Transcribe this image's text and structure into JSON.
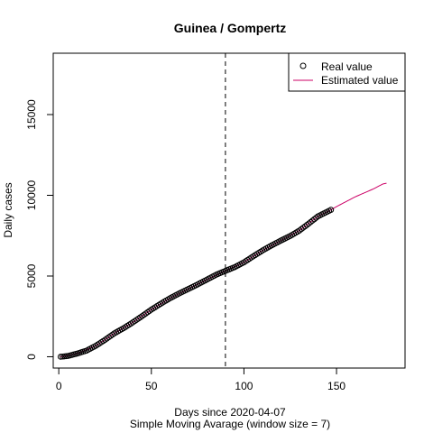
{
  "chart_data": {
    "type": "line",
    "title": "Guinea / Gompertz",
    "xlabel": "Days since 2020-04-07",
    "xlabel2": "Simple Moving Avarage (window size = 7)",
    "ylabel": "Daily cases",
    "xlim": [
      -3,
      187
    ],
    "ylim": [
      -700,
      18800
    ],
    "x_ticks": [
      0,
      50,
      100,
      150
    ],
    "y_ticks": [
      0,
      5000,
      10000,
      15000
    ],
    "vline_x": 90,
    "legend": {
      "position": "top-right",
      "items": [
        "Real value",
        "Estimated value"
      ]
    },
    "colors": {
      "real": "#000000",
      "estimated": "#cc0066",
      "vline": "#000000"
    },
    "real_anchors": [
      [
        1,
        0
      ],
      [
        5,
        50
      ],
      [
        10,
        200
      ],
      [
        15,
        380
      ],
      [
        20,
        680
      ],
      [
        25,
        1050
      ],
      [
        30,
        1450
      ],
      [
        35,
        1770
      ],
      [
        40,
        2130
      ],
      [
        45,
        2520
      ],
      [
        50,
        2920
      ],
      [
        55,
        3280
      ],
      [
        60,
        3620
      ],
      [
        65,
        3920
      ],
      [
        70,
        4200
      ],
      [
        75,
        4480
      ],
      [
        80,
        4780
      ],
      [
        85,
        5080
      ],
      [
        90,
        5320
      ],
      [
        95,
        5550
      ],
      [
        100,
        5850
      ],
      [
        105,
        6220
      ],
      [
        110,
        6580
      ],
      [
        115,
        6900
      ],
      [
        120,
        7200
      ],
      [
        125,
        7480
      ],
      [
        130,
        7820
      ],
      [
        135,
        8250
      ],
      [
        140,
        8700
      ],
      [
        147,
        9100
      ]
    ],
    "estimated_anchors": [
      [
        1,
        0
      ],
      [
        10,
        200
      ],
      [
        20,
        680
      ],
      [
        30,
        1450
      ],
      [
        40,
        2130
      ],
      [
        50,
        2920
      ],
      [
        60,
        3620
      ],
      [
        70,
        4200
      ],
      [
        80,
        4780
      ],
      [
        90,
        5320
      ],
      [
        100,
        5850
      ],
      [
        110,
        6580
      ],
      [
        120,
        7200
      ],
      [
        130,
        7820
      ],
      [
        140,
        8700
      ],
      [
        147,
        9100
      ],
      [
        150,
        9300
      ],
      [
        155,
        9600
      ],
      [
        160,
        9900
      ],
      [
        165,
        10150
      ],
      [
        170,
        10400
      ],
      [
        175,
        10700
      ],
      [
        177,
        10750
      ]
    ]
  }
}
